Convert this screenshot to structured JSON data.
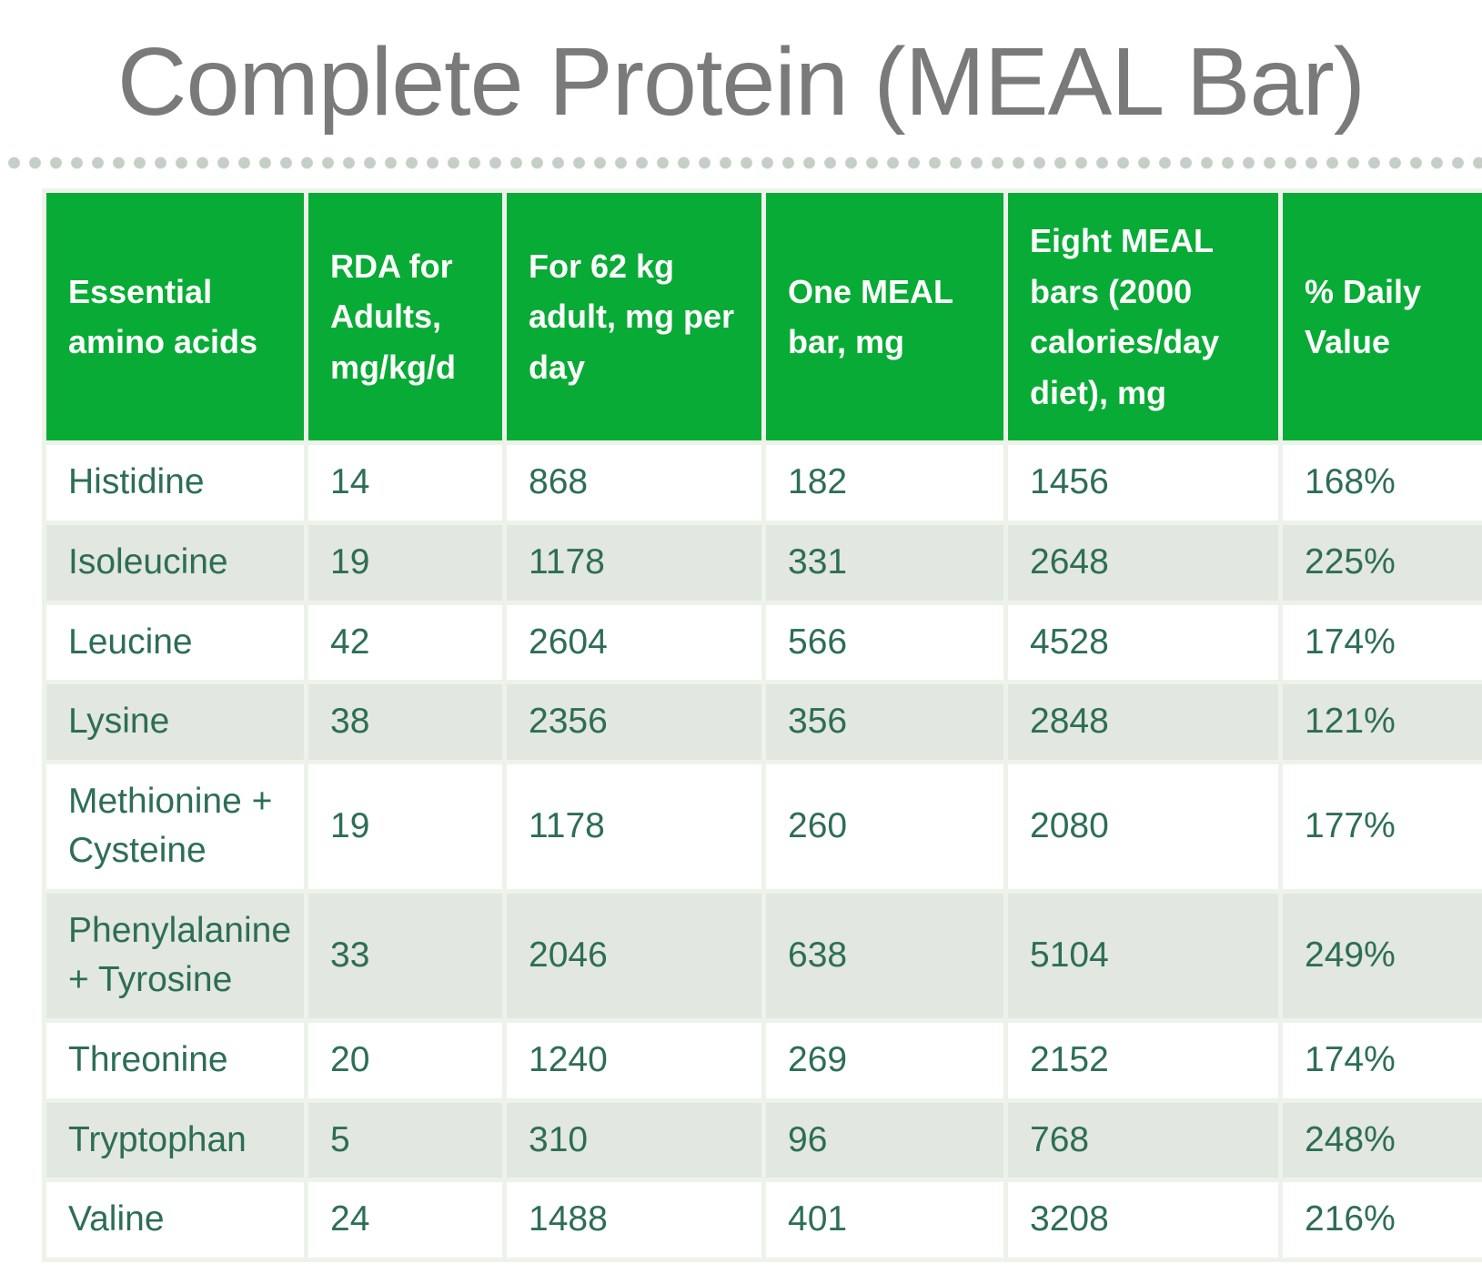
{
  "title": "Complete Protein (MEAL Bar)",
  "table": {
    "headers": [
      "Essential amino acids",
      "RDA for Adults, mg/kg/d",
      "For 62 kg adult, mg per day",
      "One MEAL bar, mg",
      "Eight MEAL bars (2000 calories/day diet), mg",
      "% Daily Value"
    ],
    "rows": [
      {
        "name": "Histidine",
        "values": [
          "14",
          "868",
          "182",
          "1456",
          "168%"
        ]
      },
      {
        "name": "Isoleucine",
        "values": [
          "19",
          "1178",
          "331",
          "2648",
          "225%"
        ]
      },
      {
        "name": "Leucine",
        "values": [
          "42",
          "2604",
          "566",
          "4528",
          "174%"
        ]
      },
      {
        "name": "Lysine",
        "values": [
          "38",
          "2356",
          "356",
          "2848",
          "121%"
        ]
      },
      {
        "name": "Methionine + Cysteine",
        "values": [
          "19",
          "1178",
          "260",
          "2080",
          "177%"
        ]
      },
      {
        "name": "Phenylalanine + Tyrosine",
        "values": [
          "33",
          "2046",
          "638",
          "5104",
          "249%"
        ]
      },
      {
        "name": "Threonine",
        "values": [
          "20",
          "1240",
          "269",
          "2152",
          "174%"
        ]
      },
      {
        "name": "Tryptophan",
        "values": [
          "5",
          "310",
          "96",
          "768",
          "248%"
        ]
      },
      {
        "name": "Valine",
        "values": [
          "24",
          "1488",
          "401",
          "3208",
          "216%"
        ]
      }
    ]
  },
  "colors": {
    "header_background": "#08ab35",
    "header_text": "#ffffff",
    "alt_row_background": "#e2e7e0",
    "data_text": "#2d6e55",
    "title_text": "#7a7a7a",
    "dot_divider": "#c6cfc5"
  }
}
